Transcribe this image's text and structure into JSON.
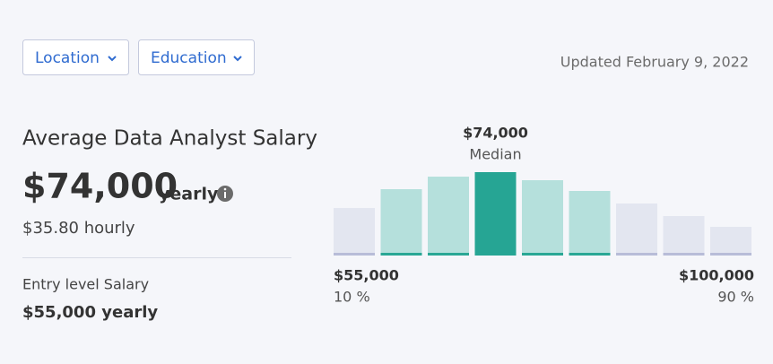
{
  "filters": [
    "Location",
    "Education"
  ],
  "updated": "Updated February 9, 2022",
  "salary": {
    "title": "Average Data Analyst Salary",
    "amount": "$74,000",
    "period": "yearly",
    "hourly": "$35.80 hourly",
    "entry_label": "Entry level Salary",
    "entry_value": "$55,000 yearly"
  },
  "chart_data": {
    "type": "bar",
    "values": [
      53,
      74,
      88,
      93,
      84,
      72,
      58,
      44,
      32
    ],
    "colors": [
      "#e3e6f0",
      "#b5e0dc",
      "#b5e0dc",
      "#26a594",
      "#b5e0dc",
      "#b5e0dc",
      "#e3e6f0",
      "#e3e6f0",
      "#e3e6f0"
    ],
    "strip_colors": [
      "#b8bcd8",
      "#2aa795",
      "#2aa795",
      "#26a594",
      "#2aa795",
      "#2aa795",
      "#b8bcd8",
      "#b8bcd8",
      "#b8bcd8"
    ],
    "ylim": [
      0,
      100
    ],
    "median": {
      "value": "$74,000",
      "label": "Median"
    },
    "low": {
      "value": "$55,000",
      "percentile": "10 %"
    },
    "high": {
      "value": "$100,000",
      "percentile": "90 %"
    }
  }
}
